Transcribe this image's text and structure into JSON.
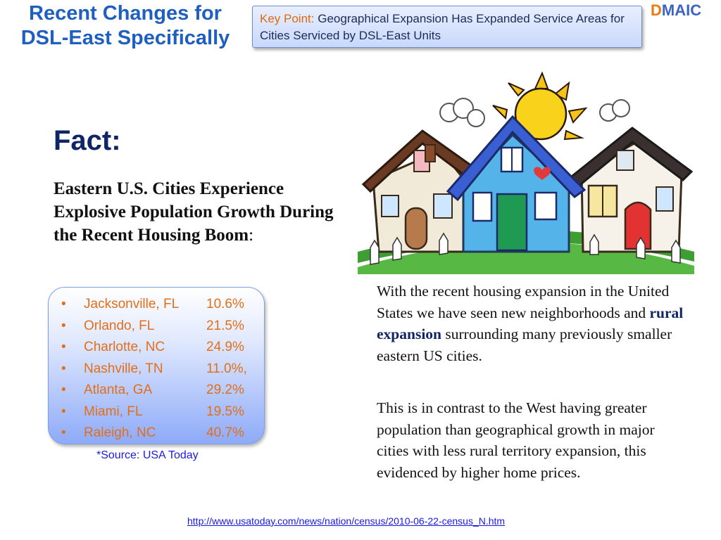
{
  "title": {
    "line1": "Recent Changes for",
    "line2": "DSL-East Specifically"
  },
  "key_point": {
    "label": "Key Point:",
    "text": "Geographical Expansion Has Expanded Service Areas for Cities Serviced by DSL-East Units"
  },
  "logo": {
    "first": "D",
    "rest": "MAIC"
  },
  "fact": {
    "heading": "Fact:",
    "headline": "Eastern U.S. Cities Experience Explosive Population Growth During the Recent Housing Boom",
    "colon": ":"
  },
  "cities": [
    {
      "name": "Jacksonville, FL",
      "growth": "10.6%"
    },
    {
      "name": "Orlando, FL",
      "growth": "21.5%"
    },
    {
      "name": "Charlotte, NC",
      "growth": "24.9%"
    },
    {
      "name": "Nashville, TN",
      "growth": "11.0%,"
    },
    {
      "name": "Atlanta, GA",
      "growth": "29.2%"
    },
    {
      "name": "Miami, FL",
      "growth": "19.5%"
    },
    {
      "name": "Raleigh, NC",
      "growth": "40.7%"
    }
  ],
  "bullet": "•",
  "source": "*Source: USA Today",
  "paragraph1": {
    "before": "With the recent housing expansion in the United States we have seen new neighborhoods and ",
    "highlight": "rural expansion",
    "after": " surrounding many previously smaller eastern US cities."
  },
  "paragraph2": "This is in contrast to the West having greater population than geographical growth in major cities with less rural territory expansion, this evidenced by higher home prices.",
  "url": "http://www.usatoday.com/news/nation/census/2010-06-22-census_N.htm",
  "colors": {
    "title": "#1f5fbf",
    "accent_orange": "#e26f17",
    "navy": "#102566",
    "link_blue": "#1a1ae0"
  }
}
